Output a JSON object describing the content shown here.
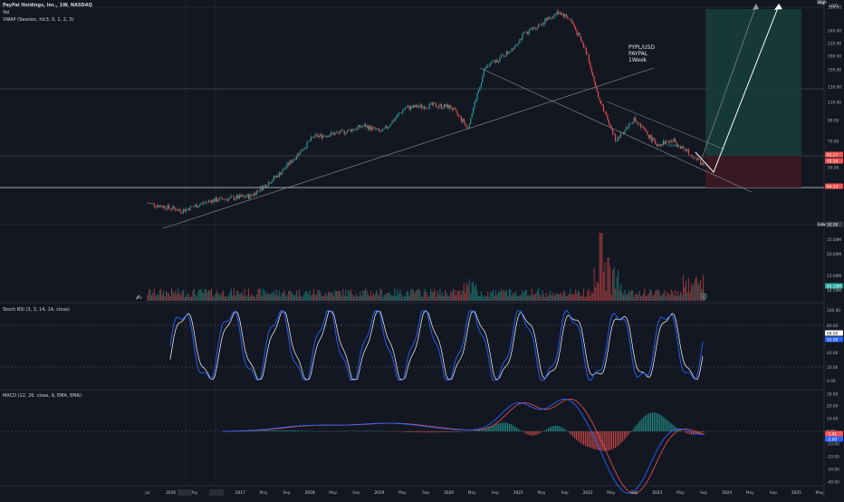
{
  "header": {
    "symbol_line": "PayPal Holdings, Inc., 1W, NASDAQ",
    "vol_label": "Vol",
    "vwap_label": "VWAP (Session, hlc3, 0, 1, 2, 3)",
    "stoch_label": "Stoch RSI (3, 3, 14, 14, close)",
    "macd_label": "MACD (12, 26, close, 9, EMA, EMA)"
  },
  "annotation": {
    "line1": "PYPL/USD",
    "line2": "PAYPAL",
    "line3": "1Week",
    "small": "Arrows"
  },
  "colors": {
    "background": "#131722",
    "up": "#26a69a",
    "down": "#ef5350",
    "stoch_k": "#2962ff",
    "stoch_d": "#ffffff",
    "macd": "#2962ff",
    "signal": "#ef5350",
    "target_zone": "#1b4a44",
    "stop_zone": "#4a1e24"
  },
  "price_axis": {
    "currency": "USD",
    "high_badge": "High",
    "low_badge": "Low",
    "ticks": [
      "330.00",
      "240.00",
      "210.00",
      "190.00",
      "150.00",
      "130.00",
      "110.00",
      "90.00",
      "70.00",
      "50.00",
      "30.00"
    ],
    "badges": [
      {
        "label": "81.27",
        "color": "#ef5350"
      },
      {
        "label": "70.10",
        "color": "#ef5350"
      },
      {
        "label": "66.13",
        "color": "#ef5350"
      },
      {
        "label": "30.00",
        "color": "#363a45"
      }
    ]
  },
  "volume_axis": {
    "ticks": [
      "25.00M",
      "20.00M",
      "15.00M",
      "14.50M"
    ],
    "badge": "85.35M"
  },
  "stoch_axis": {
    "ticks": [
      "100.00",
      "80.00",
      "60.00",
      "40.00",
      "20.00",
      "0.00"
    ],
    "badges": [
      "68.00",
      "55.00"
    ]
  },
  "macd_axis": {
    "ticks": [
      "30.00",
      "20.00",
      "10.00",
      "0.00",
      "-10.00",
      "-20.00",
      "-30.00",
      "-40.00"
    ],
    "badges": [
      "-1.41",
      "-3.00"
    ]
  },
  "time_axis": {
    "labels": [
      "Jul",
      "2016",
      "May",
      "Sep",
      "2017",
      "May",
      "Sep",
      "2018",
      "May",
      "Sep",
      "2019",
      "May",
      "Sep",
      "2020",
      "May",
      "Sep",
      "2021",
      "May",
      "Sep",
      "2022",
      "May",
      "Sep",
      "2023",
      "May",
      "Sep",
      "2024",
      "May",
      "Sep",
      "2025",
      "May"
    ]
  },
  "chart_data": {
    "type": "candlestick",
    "price_scale": "log",
    "price_series": [
      {
        "date": "2015-07",
        "value": 38
      },
      {
        "date": "2016-01",
        "value": 35
      },
      {
        "date": "2016-06",
        "value": 39
      },
      {
        "date": "2017-01",
        "value": 41
      },
      {
        "date": "2017-06",
        "value": 52
      },
      {
        "date": "2017-12",
        "value": 78
      },
      {
        "date": "2018-05",
        "value": 82
      },
      {
        "date": "2018-09",
        "value": 88
      },
      {
        "date": "2018-12",
        "value": 82
      },
      {
        "date": "2019-04",
        "value": 107
      },
      {
        "date": "2019-09",
        "value": 110
      },
      {
        "date": "2019-12",
        "value": 108
      },
      {
        "date": "2020-03",
        "value": 87
      },
      {
        "date": "2020-06",
        "value": 165
      },
      {
        "date": "2020-10",
        "value": 195
      },
      {
        "date": "2021-01",
        "value": 240
      },
      {
        "date": "2021-04",
        "value": 270
      },
      {
        "date": "2021-07",
        "value": 305
      },
      {
        "date": "2021-09",
        "value": 280
      },
      {
        "date": "2021-12",
        "value": 190
      },
      {
        "date": "2022-02",
        "value": 115
      },
      {
        "date": "2022-05",
        "value": 75
      },
      {
        "date": "2022-08",
        "value": 95
      },
      {
        "date": "2022-12",
        "value": 72
      },
      {
        "date": "2023-03",
        "value": 75
      },
      {
        "date": "2023-06",
        "value": 65
      },
      {
        "date": "2023-08",
        "value": 58
      }
    ],
    "annotations": [
      "PYPL/USD",
      "PAYPAL",
      "1Week"
    ],
    "stoch_rsi_levels": [
      80,
      20
    ],
    "macd_zero": 0
  }
}
